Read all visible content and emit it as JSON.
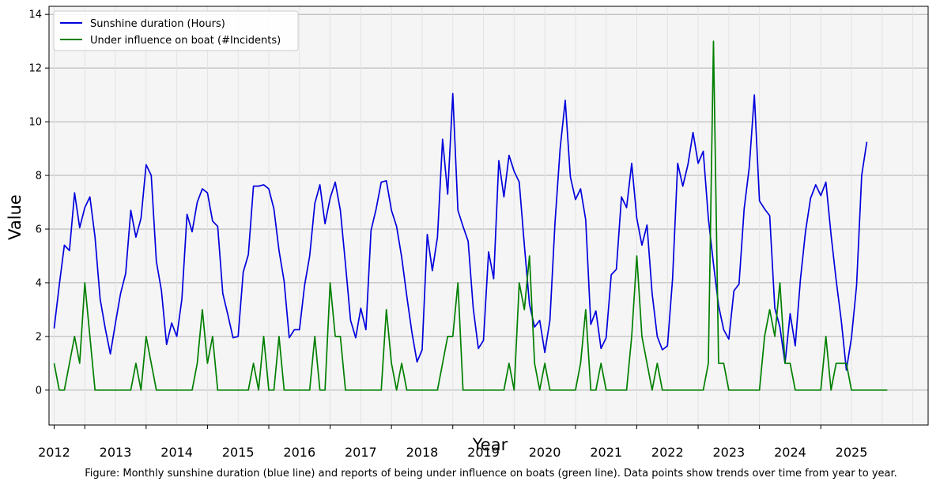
{
  "chart_data": {
    "type": "line",
    "title": "",
    "xlabel": "Year",
    "ylabel": "Value",
    "caption": "Figure: Monthly sunshine duration (blue line) and reports of being under influence on boats (green line). Data points show trends over time from year to year.",
    "xlim": [
      "2011-06",
      "2025-10"
    ],
    "ylim": [
      -1.3,
      14.3
    ],
    "x_ticks": [
      "2012",
      "2013",
      "2014",
      "2015",
      "2016",
      "2017",
      "2018",
      "2019",
      "2020",
      "2021",
      "2022",
      "2023",
      "2024",
      "2025"
    ],
    "y_ticks": [
      "0",
      "2",
      "4",
      "6",
      "8",
      "10",
      "12",
      "14"
    ],
    "grid": true,
    "legend_position": "upper-left",
    "x_start": "2011-07",
    "x_step": "month",
    "series": [
      {
        "name": "Sunshine duration (Hours)",
        "color": "#0000dd",
        "values": [
          2.3,
          3.9,
          5.4,
          5.2,
          7.35,
          6.05,
          6.8,
          7.2,
          5.7,
          3.4,
          2.3,
          1.35,
          2.5,
          3.6,
          4.35,
          6.7,
          5.7,
          6.4,
          8.4,
          8.0,
          4.8,
          3.7,
          1.7,
          2.5,
          2.0,
          3.4,
          6.55,
          5.9,
          7.0,
          7.5,
          7.35,
          6.3,
          6.1,
          3.6,
          2.8,
          1.95,
          2.0,
          4.4,
          5.05,
          7.6,
          7.6,
          7.65,
          7.5,
          6.75,
          5.2,
          4.05,
          1.95,
          2.25,
          2.25,
          3.9,
          5.0,
          6.95,
          7.65,
          6.2,
          7.15,
          7.75,
          6.7,
          4.7,
          2.6,
          1.95,
          3.05,
          2.25,
          5.95,
          6.75,
          7.75,
          7.8,
          6.7,
          6.1,
          4.95,
          3.5,
          2.15,
          1.05,
          1.5,
          5.8,
          4.45,
          5.7,
          9.35,
          7.3,
          11.05,
          6.7,
          6.1,
          5.55,
          3.05,
          1.55,
          1.85,
          5.15,
          4.15,
          8.55,
          7.2,
          8.75,
          8.15,
          7.75,
          5.4,
          3.2,
          2.35,
          2.6,
          1.4,
          2.6,
          6.25,
          9.0,
          10.8,
          7.95,
          7.1,
          7.5,
          6.35,
          2.45,
          2.95,
          1.55,
          1.95,
          4.3,
          4.5,
          7.2,
          6.8,
          8.45,
          6.4,
          5.4,
          6.15,
          3.6,
          2.0,
          1.5,
          1.65,
          4.15,
          8.45,
          7.6,
          8.4,
          9.6,
          8.45,
          8.9,
          6.4,
          4.7,
          3.15,
          2.25,
          1.9,
          3.7,
          3.95,
          6.75,
          8.3,
          11.0,
          7.05,
          6.75,
          6.5,
          3.05,
          2.35,
          1.0,
          2.85,
          1.65,
          4.1,
          5.9,
          7.15,
          7.65,
          7.25,
          7.75,
          5.8,
          4.1,
          2.6,
          0.75,
          1.95,
          3.9,
          8.0,
          9.25
        ]
      },
      {
        "name": "Under influence on boat (#Incidents)",
        "color": "#007f00",
        "values": [
          1,
          0,
          0,
          1,
          2,
          1,
          4,
          2,
          0,
          0,
          0,
          0,
          0,
          0,
          0,
          0,
          1,
          0,
          2,
          1,
          0,
          0,
          0,
          0,
          0,
          0,
          0,
          0,
          1,
          3,
          1,
          2,
          0,
          0,
          0,
          0,
          0,
          0,
          0,
          1,
          0,
          2,
          0,
          0,
          2,
          0,
          0,
          0,
          0,
          0,
          0,
          2,
          0,
          0,
          4,
          2,
          2,
          0,
          0,
          0,
          0,
          0,
          0,
          0,
          0,
          3,
          1,
          0,
          1,
          0,
          0,
          0,
          0,
          0,
          0,
          0,
          1,
          2,
          2,
          4,
          0,
          0,
          0,
          0,
          0,
          0,
          0,
          0,
          0,
          1,
          0,
          4,
          3,
          5,
          1,
          0,
          1,
          0,
          0,
          0,
          0,
          0,
          0,
          1,
          3,
          0,
          0,
          1,
          0,
          0,
          0,
          0,
          0,
          2,
          5,
          2,
          1,
          0,
          1,
          0,
          0,
          0,
          0,
          0,
          0,
          0,
          0,
          0,
          1,
          13,
          1,
          1,
          0,
          0,
          0,
          0,
          0,
          0,
          0,
          2,
          3,
          2,
          4,
          1,
          1,
          0,
          0,
          0,
          0,
          0,
          0,
          2,
          0,
          1,
          1,
          1,
          0,
          0,
          0,
          0,
          0,
          0,
          0,
          0
        ]
      }
    ]
  }
}
